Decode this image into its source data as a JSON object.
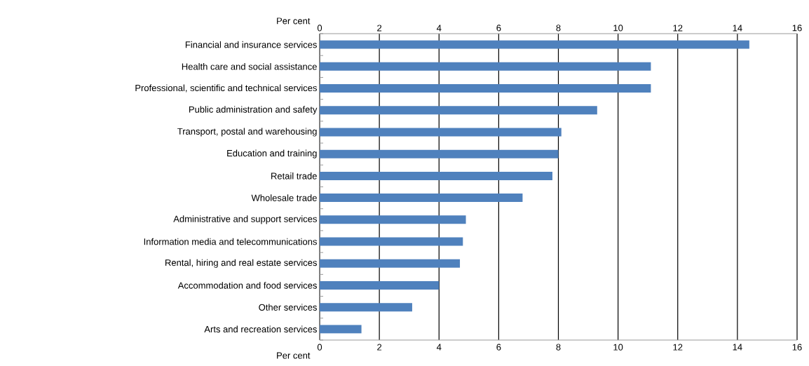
{
  "chart_data": {
    "type": "bar",
    "orientation": "horizontal",
    "xlabel": "Per cent",
    "x2label": "Per cent",
    "categories": [
      "Financial and insurance services",
      "Health care and social assistance",
      "Professional, scientific and technical services",
      "Public administration and safety",
      "Transport, postal and warehousing",
      "Education and training",
      "Retail trade",
      "Wholesale trade",
      "Administrative and support services",
      "Information media and telecommunications",
      "Rental, hiring and real estate services",
      "Accommodation and food services",
      "Other services",
      "Arts and recreation services"
    ],
    "values": [
      14.4,
      11.1,
      11.1,
      9.3,
      8.1,
      8.0,
      7.8,
      6.8,
      4.9,
      4.8,
      4.7,
      4.0,
      3.1,
      1.4
    ],
    "color": "#4f81bd",
    "xlim": [
      0,
      16
    ],
    "xticks": [
      0,
      2,
      4,
      6,
      8,
      10,
      12,
      14,
      16
    ],
    "x2lim": [
      0,
      16
    ],
    "x2ticks": [
      0,
      2,
      4,
      6,
      8,
      10,
      12,
      14,
      16
    ],
    "grid": "x"
  }
}
